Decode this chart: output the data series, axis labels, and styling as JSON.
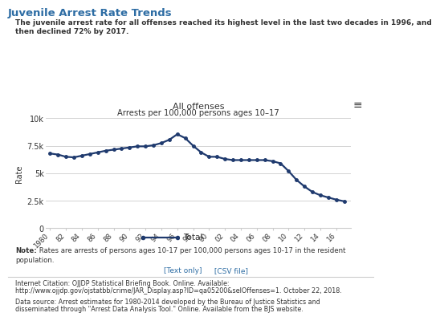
{
  "title_main": "Juvenile Arrest Rate Trends",
  "subtitle_line1": "The juvenile arrest rate for all offenses reached its highest level in the last two decades in 1996, and",
  "subtitle_line2": "then declined 72% by 2017.",
  "chart_title_line1": "All offenses",
  "chart_title_line2": "Arrests per 100,000 persons ages 10–17",
  "ylabel": "Rate",
  "legend_label": "Total",
  "note_bold": "Note:",
  "note_rest": " Rates are arrests of persons ages 10-17 per 100,000 persons ages 10-17 in the resident",
  "note_line2": "population.",
  "link1": "[Text only]",
  "link2": " [CSV file]",
  "citation_line1": "Internet Citation: OJJDP Statistical Briefing Book. Online. Available:",
  "citation_line2": "http://www.ojjdp.gov/ojstatbb/crime/JAR_Display.asp?ID=qa05200&selOffenses=1. October 22, 2018.",
  "datasource_line1": "Data source: Arrest estimates for 1980-2014 developed by the Bureau of Justice Statistics and",
  "datasource_line2": "disseminated through \"Arrest Data Analysis Tool.\" Online. Available from the BJS website.",
  "years": [
    1980,
    1981,
    1982,
    1983,
    1984,
    1985,
    1986,
    1987,
    1988,
    1989,
    1990,
    1991,
    1992,
    1993,
    1994,
    1995,
    1996,
    1997,
    1998,
    1999,
    2000,
    2001,
    2002,
    2003,
    2004,
    2005,
    2006,
    2007,
    2008,
    2009,
    2010,
    2011,
    2012,
    2013,
    2014,
    2015,
    2016,
    2017
  ],
  "values": [
    6800,
    6700,
    6500,
    6450,
    6600,
    6750,
    6900,
    7050,
    7150,
    7250,
    7350,
    7450,
    7450,
    7550,
    7750,
    8050,
    8550,
    8200,
    7500,
    6900,
    6500,
    6500,
    6300,
    6200,
    6200,
    6200,
    6200,
    6200,
    6100,
    5900,
    5200,
    4400,
    3800,
    3300,
    3000,
    2800,
    2600,
    2450
  ],
  "line_color": "#1f3a6e",
  "marker_size": 2.5,
  "line_width": 1.6,
  "ylim": [
    0,
    10000
  ],
  "yticks": [
    0,
    2500,
    5000,
    7500,
    10000
  ],
  "ytick_labels": [
    "0",
    "2.5k",
    "5k",
    "7.5k",
    "10k"
  ],
  "xtick_labels": [
    "1980",
    "82",
    "84",
    "86",
    "88",
    "90",
    "92",
    "94",
    "96",
    "98",
    "00",
    "02",
    "04",
    "06",
    "08",
    "10",
    "12",
    "14",
    "16"
  ],
  "xtick_positions": [
    1980,
    1982,
    1984,
    1986,
    1988,
    1990,
    1992,
    1994,
    1996,
    1998,
    2000,
    2002,
    2004,
    2006,
    2008,
    2010,
    2012,
    2014,
    2016
  ],
  "grid_color": "#cccccc",
  "title_color": "#2e6da4",
  "text_color": "#333333",
  "link_color": "#2e6da4",
  "menu_icon": "≡",
  "bg_color": "#ffffff"
}
